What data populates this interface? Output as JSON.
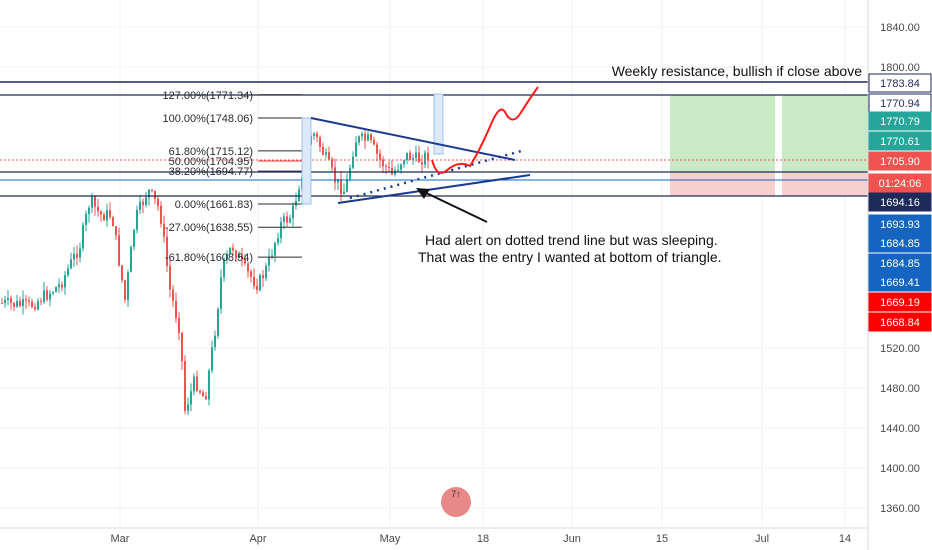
{
  "chart_data": {
    "type": "candlestick",
    "y_ticks": [
      "1840.00",
      "1800.00",
      "1520.00",
      "1480.00",
      "1440.00",
      "1400.00",
      "1360.00"
    ],
    "x_ticks": [
      {
        "label": "Mar",
        "x": 1.0
      },
      {
        "label": "Apr",
        "x": 2.0
      },
      {
        "label": "May",
        "x": 3.0
      },
      {
        "label": "18",
        "x": 3.57
      },
      {
        "label": "Jun",
        "x": 4.1
      },
      {
        "label": "15",
        "x": 4.6
      },
      {
        "label": "Jul",
        "x": 5.1
      },
      {
        "label": "14",
        "x": 5.6
      }
    ],
    "price_labels": [
      {
        "text": "1783.84",
        "bg": "#ffffff",
        "fg": "#1e2a5a",
        "border": "#1e2a5a"
      },
      {
        "text": "1770.94",
        "bg": "#ffffff",
        "fg": "#1e2a5a",
        "border": "#1e2a5a"
      },
      {
        "text": "1770.79",
        "bg": "#26a69a",
        "fg": "#ffffff",
        "border": "#26a69a"
      },
      {
        "text": "1770.61",
        "bg": "#26a69a",
        "fg": "#ffffff",
        "border": "#26a69a"
      },
      {
        "text": "1705.90",
        "bg": "#ef5350",
        "fg": "#ffffff",
        "border": "#ef5350"
      },
      {
        "text": "01:24:06",
        "bg": "#ef5350",
        "fg": "#ffffff",
        "border": "#ef5350"
      },
      {
        "text": "1694.16",
        "bg": "#1e2a5a",
        "fg": "#ffffff",
        "border": "#1e2a5a"
      },
      {
        "text": "1693.93",
        "bg": "#1565c0",
        "fg": "#ffffff",
        "border": "#1565c0"
      },
      {
        "text": "1684.85",
        "bg": "#1565c0",
        "fg": "#ffffff",
        "border": "#1565c0"
      },
      {
        "text": "1684.85",
        "bg": "#1565c0",
        "fg": "#ffffff",
        "border": "#1565c0"
      },
      {
        "text": "1669.41",
        "bg": "#1565c0",
        "fg": "#ffffff",
        "border": "#1565c0"
      },
      {
        "text": "1669.19",
        "bg": "#ff0000",
        "fg": "#ffffff",
        "border": "#ff0000"
      },
      {
        "text": "1668.84",
        "bg": "#ff0000",
        "fg": "#ffffff",
        "border": "#ff0000"
      }
    ],
    "fib_levels": [
      {
        "label": "127.00%(1771.34)",
        "value": 1771.34,
        "color": "#2b2b2b"
      },
      {
        "label": "100.00%(1748.06)",
        "value": 1748.06,
        "color": "#2b2b2b"
      },
      {
        "label": "61.80%(1715.12)",
        "value": 1715.12,
        "color": "#2b2b2b"
      },
      {
        "label": "50.00%(1704.95)",
        "value": 1704.95,
        "color": "#e53935"
      },
      {
        "label": "38.20%(1694.77)",
        "value": 1694.77,
        "color": "#1e2a5a"
      },
      {
        "label": "0.00%(1661.83)",
        "value": 1661.83,
        "color": "#2b2b2b"
      },
      {
        "label": "-27.00%(1638.55)",
        "value": 1638.55,
        "color": "#2b2b2b"
      },
      {
        "label": "-61.80%(1608.54)",
        "value": 1608.54,
        "color": "#2b2b2b"
      }
    ],
    "annotations": {
      "resistance": "Weekly resistance, bullish if close above",
      "note_line1": "Had alert on dotted trend line but was sleeping.",
      "note_line2": "That was the entry I wanted at bottom of triangle."
    },
    "colors": {
      "up": "#26a69a",
      "down": "#ef5350",
      "trend": "#1a3a8f",
      "projection": "#ff0000"
    }
  }
}
